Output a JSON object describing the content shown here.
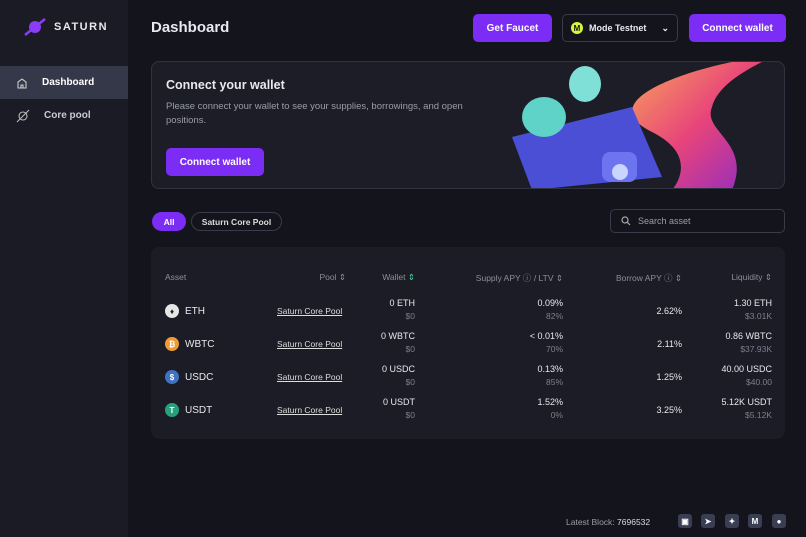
{
  "brand": {
    "name": "SATURN"
  },
  "sidebar": {
    "items": [
      {
        "label": "Dashboard",
        "icon": "home-icon"
      },
      {
        "label": "Core pool",
        "icon": "planet-icon"
      }
    ]
  },
  "header": {
    "title": "Dashboard",
    "faucet": "Get Faucet",
    "network": "Mode Testnet",
    "network_badge": "M",
    "connect": "Connect wallet"
  },
  "banner": {
    "title": "Connect your wallet",
    "text": "Please connect your wallet to see your supplies, borrowings, and open positions.",
    "button": "Connect wallet"
  },
  "filters": {
    "all": "All",
    "core": "Saturn Core Pool"
  },
  "search": {
    "placeholder": "Search asset"
  },
  "table": {
    "headers": {
      "asset": "Asset",
      "pool": "Pool",
      "wallet": "Wallet",
      "supply": "Supply APY",
      "ltv": "/ LTV",
      "borrow": "Borrow APY",
      "liquidity": "Liquidity"
    },
    "rows": [
      {
        "asset": "ETH",
        "pool": "Saturn Core Pool",
        "wallet": "0 ETH",
        "wallet_usd": "$0",
        "supply": "0.09%",
        "ltv": "82%",
        "borrow": "2.62%",
        "liq": "1.30 ETH",
        "liq_usd": "$3.01K",
        "color": "#e6e6e6",
        "glyph": "♦"
      },
      {
        "asset": "WBTC",
        "pool": "Saturn Core Pool",
        "wallet": "0 WBTC",
        "wallet_usd": "$0",
        "supply": "< 0.01%",
        "ltv": "70%",
        "borrow": "2.11%",
        "liq": "0.86 WBTC",
        "liq_usd": "$37.93K",
        "color": "#f09a37",
        "glyph": "₿"
      },
      {
        "asset": "USDC",
        "pool": "Saturn Core Pool",
        "wallet": "0 USDC",
        "wallet_usd": "$0",
        "supply": "0.13%",
        "ltv": "85%",
        "borrow": "1.25%",
        "liq": "40.00 USDC",
        "liq_usd": "$40.00",
        "color": "#3e73c4",
        "glyph": "$"
      },
      {
        "asset": "USDT",
        "pool": "Saturn Core Pool",
        "wallet": "0 USDT",
        "wallet_usd": "$0",
        "supply": "1.52%",
        "ltv": "0%",
        "borrow": "3.25%",
        "liq": "5.12K USDT",
        "liq_usd": "$5.12K",
        "color": "#26a17b",
        "glyph": "T"
      }
    ]
  },
  "footer": {
    "label": "Latest Block:",
    "block": "7696532",
    "social": [
      "discord",
      "telegram",
      "twitter",
      "medium",
      "github"
    ],
    "medium_glyph": "M"
  }
}
